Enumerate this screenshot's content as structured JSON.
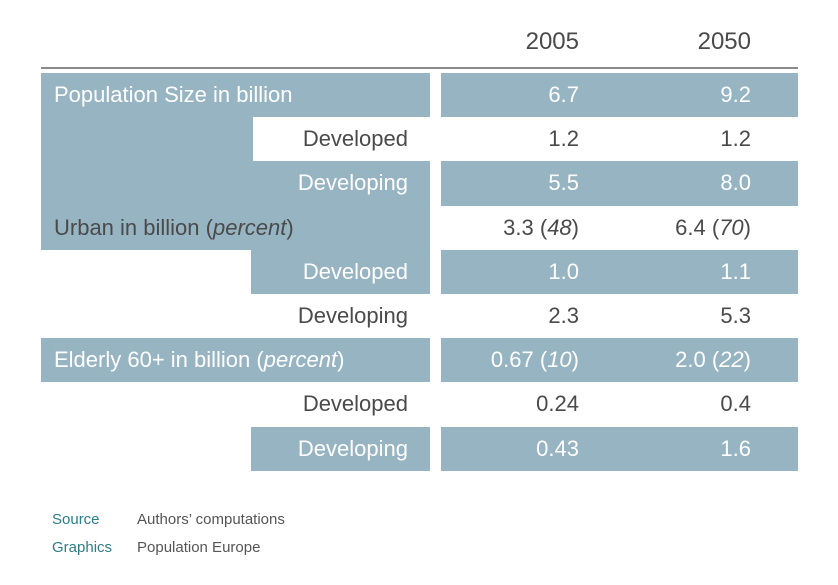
{
  "chart_data": {
    "type": "table",
    "columns": [
      "2005",
      "2050"
    ],
    "rows": [
      {
        "label": "Population Size in billion",
        "level": "main",
        "v2005": "6.7",
        "v2050": "9.2",
        "shaded": true
      },
      {
        "label": "Developed",
        "level": "sub",
        "v2005": "1.2",
        "v2050": "1.2",
        "shaded": false
      },
      {
        "label": "Developing",
        "level": "sub",
        "v2005": "5.5",
        "v2050": "8.0",
        "shaded": true
      },
      {
        "label": "Urban in billion",
        "label_italic": "percent",
        "level": "main",
        "v2005": "3.3",
        "v2005_pct": "48",
        "v2050": "6.4",
        "v2050_pct": "70",
        "shaded": false
      },
      {
        "label": "Developed",
        "level": "sub",
        "v2005": "1.0",
        "v2050": "1.1",
        "shaded": true
      },
      {
        "label": "Developing",
        "level": "sub",
        "v2005": "2.3",
        "v2050": "5.3",
        "shaded": false
      },
      {
        "label": "Elderly 60+ in billion",
        "label_italic": "percent",
        "level": "main",
        "v2005": "0.67",
        "v2005_pct": "10",
        "v2050": "2.0",
        "v2050_pct": "22",
        "shaded": true
      },
      {
        "label": "Developed",
        "level": "sub",
        "v2005": "0.24",
        "v2050": "0.4",
        "shaded": false
      },
      {
        "label": "Developing",
        "level": "sub",
        "v2005": "0.43",
        "v2050": "1.6",
        "shaded": true
      }
    ]
  },
  "footer": {
    "source_label": "Source",
    "source_value": "Authors’ computations",
    "graphics_label": "Graphics",
    "graphics_value": "Population Europe"
  },
  "colors": {
    "band": "#97b4c2",
    "text_dark": "#4a4a4a",
    "footer_label": "#2d7d8a"
  }
}
